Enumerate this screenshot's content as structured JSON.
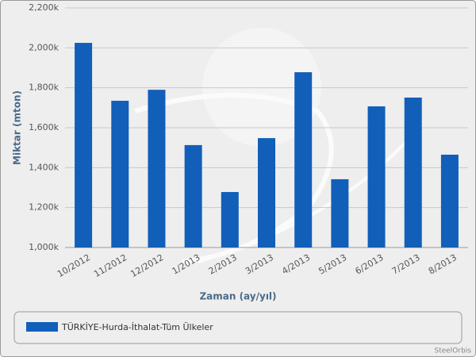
{
  "chart_data": {
    "type": "bar",
    "x_label": "Zaman (ay/yıl)",
    "y_label": "Miktar (mton)",
    "categories": [
      "10/2012",
      "11/2012",
      "12/2012",
      "1/2013",
      "2/2013",
      "3/2013",
      "4/2013",
      "5/2013",
      "6/2013",
      "7/2013",
      "8/2013"
    ],
    "series": [
      {
        "name": "TÜRKİYE-Hurda-İthalat-Tüm Ülkeler",
        "color": "#115fb9",
        "values": [
          2025000,
          1735000,
          1790000,
          1513000,
          1278000,
          1548000,
          1878000,
          1342000,
          1707000,
          1751000,
          1465000
        ]
      }
    ],
    "ylim": [
      1000000,
      2200000
    ],
    "yticks": [
      {
        "value": 1000000,
        "label": "1,000k"
      },
      {
        "value": 1200000,
        "label": "1,200k"
      },
      {
        "value": 1400000,
        "label": "1,400k"
      },
      {
        "value": 1600000,
        "label": "1,600k"
      },
      {
        "value": 1800000,
        "label": "1,800k"
      },
      {
        "value": 2000000,
        "label": "2,000k"
      },
      {
        "value": 2200000,
        "label": "2,200k"
      }
    ],
    "grid": true,
    "credit": "SteelOrbis"
  }
}
